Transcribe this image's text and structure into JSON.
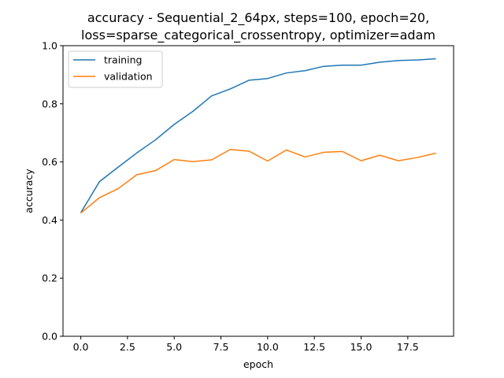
{
  "chart_data": {
    "type": "line",
    "title": [
      "accuracy - Sequential_2_64px, steps=100, epoch=20,",
      "loss=sparse_categorical_crossentropy, optimizer=adam"
    ],
    "xlabel": "epoch",
    "ylabel": "accuracy",
    "xlim": [
      -0.95,
      19.95
    ],
    "ylim": [
      0.0,
      1.0
    ],
    "xticks": [
      0.0,
      2.5,
      5.0,
      7.5,
      10.0,
      12.5,
      15.0,
      17.5
    ],
    "xtick_labels": [
      "0.0",
      "2.5",
      "5.0",
      "7.5",
      "10.0",
      "12.5",
      "15.0",
      "17.5"
    ],
    "yticks": [
      0.0,
      0.2,
      0.4,
      0.6,
      0.8,
      1.0
    ],
    "ytick_labels": [
      "0.0",
      "0.2",
      "0.4",
      "0.6",
      "0.8",
      "1.0"
    ],
    "grid": false,
    "legend_position": "upper-left",
    "x": [
      0,
      1,
      2,
      3,
      4,
      5,
      6,
      7,
      8,
      9,
      10,
      11,
      12,
      13,
      14,
      15,
      16,
      17,
      18,
      19
    ],
    "series": [
      {
        "name": "training",
        "color": "#1f77b4",
        "values": [
          0.425,
          0.532,
          0.582,
          0.631,
          0.676,
          0.729,
          0.774,
          0.827,
          0.851,
          0.881,
          0.887,
          0.906,
          0.914,
          0.929,
          0.933,
          0.933,
          0.943,
          0.949,
          0.951,
          0.955
        ]
      },
      {
        "name": "validation",
        "color": "#ff7f0e",
        "values": [
          0.424,
          0.477,
          0.508,
          0.556,
          0.57,
          0.608,
          0.601,
          0.607,
          0.643,
          0.637,
          0.603,
          0.641,
          0.617,
          0.633,
          0.636,
          0.604,
          0.623,
          0.604,
          0.615,
          0.63
        ]
      }
    ]
  }
}
